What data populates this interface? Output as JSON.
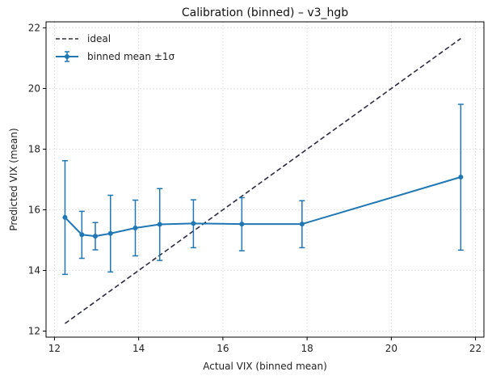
{
  "chart_data": {
    "type": "line",
    "title": "Calibration (binned) – v3_hgb",
    "xlabel": "Actual VIX (binned mean)",
    "ylabel": "Predicted VIX (mean)",
    "xlim": [
      11.8,
      22.2
    ],
    "ylim": [
      11.8,
      22.2
    ],
    "xticks": [
      12,
      14,
      16,
      18,
      20,
      22
    ],
    "yticks": [
      12,
      14,
      16,
      18,
      20,
      22
    ],
    "grid": true,
    "legend_position": "top-left",
    "series": [
      {
        "name": "ideal",
        "style": "dashed",
        "color": "#2b2b3f",
        "x": [
          12.25,
          21.65
        ],
        "y": [
          12.25,
          21.65
        ]
      },
      {
        "name": "binned mean ±1σ",
        "style": "solid-markers-errorbars",
        "color": "#1f77b4",
        "x": [
          12.25,
          12.65,
          12.97,
          13.33,
          13.92,
          14.5,
          15.3,
          16.45,
          17.88,
          21.65
        ],
        "y": [
          15.75,
          15.18,
          15.13,
          15.22,
          15.4,
          15.52,
          15.55,
          15.53,
          15.53,
          17.08
        ],
        "yerr_low": [
          13.87,
          14.4,
          14.68,
          13.95,
          14.48,
          14.33,
          14.75,
          14.65,
          14.75,
          14.67
        ],
        "yerr_high": [
          17.62,
          15.95,
          15.58,
          16.48,
          16.32,
          16.7,
          16.33,
          16.4,
          16.3,
          19.48
        ]
      }
    ]
  },
  "colors": {
    "ideal": "#2b2b3f",
    "binned": "#1f77b4",
    "grid": "#cfcfcf"
  }
}
